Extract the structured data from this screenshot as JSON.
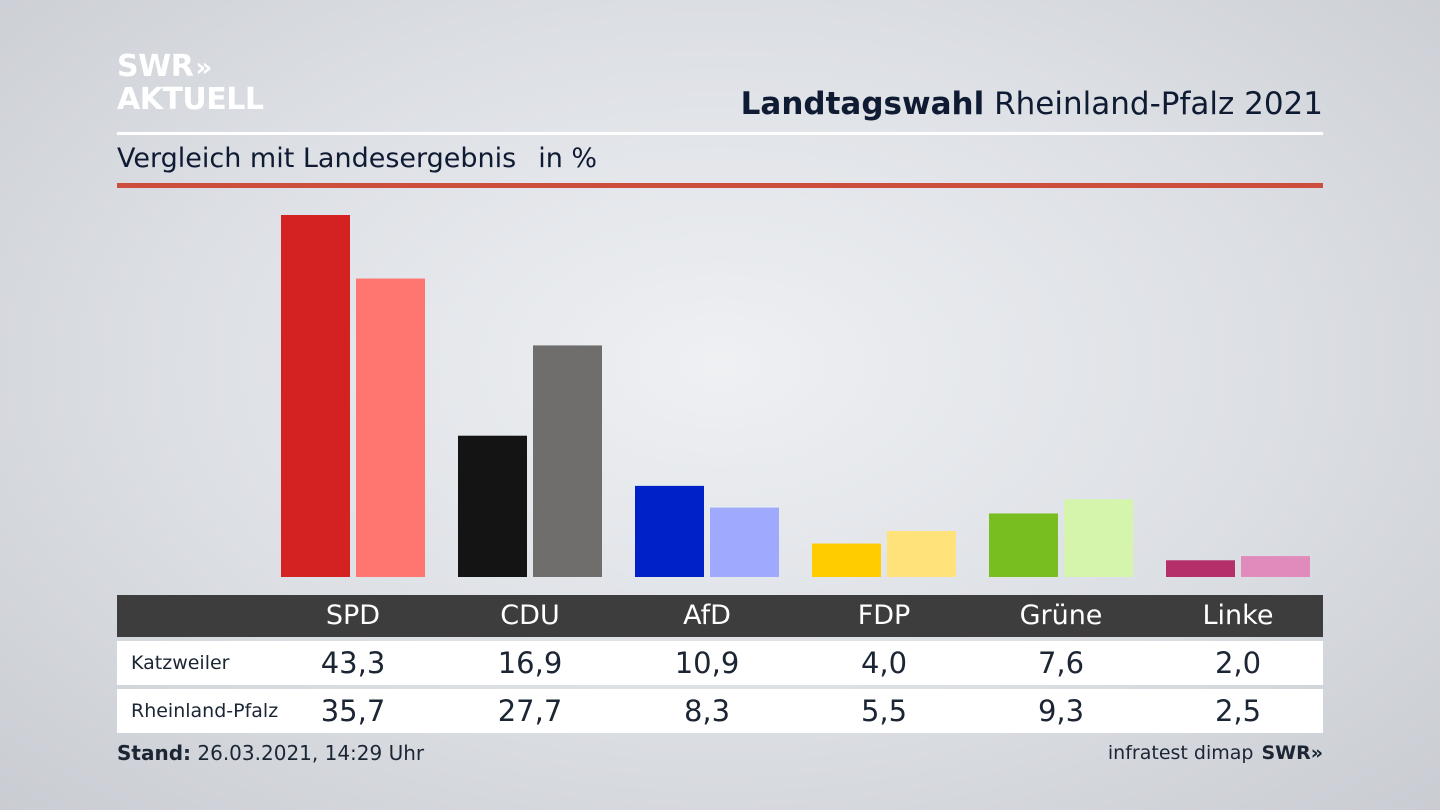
{
  "logo": {
    "line1": "SWR",
    "arrows": "»",
    "line2": "AKTUELL"
  },
  "header": {
    "title_bold": "Landtagswahl",
    "title_rest": "Rheinland-Pfalz 2021"
  },
  "subheader": {
    "text": "Vergleich mit Landesergebnis",
    "unit": "in %"
  },
  "footer": {
    "stand_label": "Stand:",
    "stand_value": "26.03.2021, 14:29 Uhr",
    "source": "infratest dimap",
    "brand": "SWR»"
  },
  "colors": {
    "title_rule": "#cc4e3c",
    "table_header": "#3d3d3d",
    "parties_primary": [
      "#d42222",
      "#141414",
      "#0021c8",
      "#ffcc00",
      "#78be20",
      "#b5306b"
    ],
    "parties_secondary": [
      "#ff7570",
      "#6f6e6c",
      "#9faaff",
      "#ffe27a",
      "#d5f5ad",
      "#e08bbb"
    ]
  },
  "chart_data": {
    "type": "bar",
    "categories": [
      "SPD",
      "CDU",
      "AfD",
      "FDP",
      "Grüne",
      "Linke"
    ],
    "series": [
      {
        "name": "Katzweiler",
        "values": [
          43.3,
          16.9,
          10.9,
          4.0,
          7.6,
          2.0
        ]
      },
      {
        "name": "Rheinland-Pfalz",
        "values": [
          35.7,
          27.7,
          8.3,
          5.5,
          9.3,
          2.5
        ]
      }
    ],
    "value_labels": [
      [
        "43,3",
        "16,9",
        "10,9",
        "4,0",
        "7,6",
        "2,0"
      ],
      [
        "35,7",
        "27,7",
        "8,3",
        "5,5",
        "9,3",
        "2,5"
      ]
    ],
    "ylim": [
      0,
      43.3
    ],
    "grid": false,
    "legend": "none"
  }
}
